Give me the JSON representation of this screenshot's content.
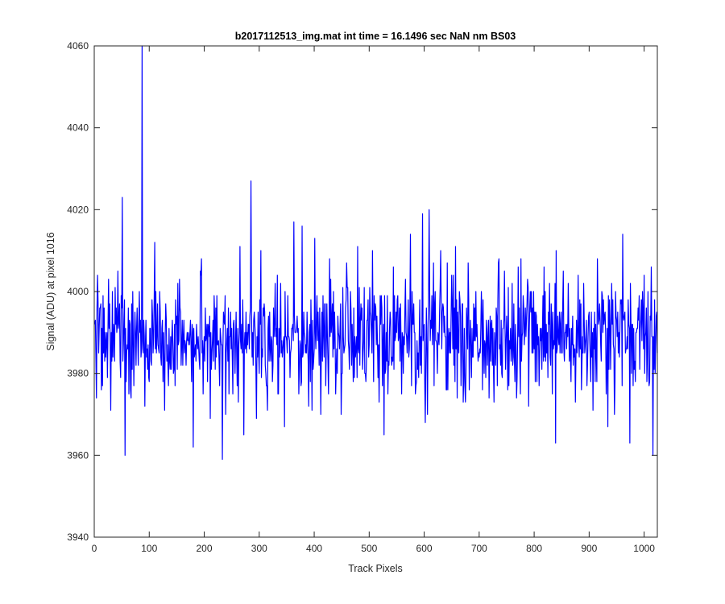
{
  "window": {
    "background": "#ffffff"
  },
  "chart_data": {
    "type": "line",
    "title": "b2017112513_img.mat int time = 16.1496 sec  NaN nm BS03",
    "xlabel": "Track Pixels",
    "ylabel": "Signal (ADU) at pixel 1016",
    "xlim": [
      0,
      1024
    ],
    "ylim": [
      3940,
      4060
    ],
    "xticks": [
      0,
      100,
      200,
      300,
      400,
      500,
      600,
      700,
      800,
      900,
      1000
    ],
    "yticks": [
      3940,
      3960,
      3980,
      4000,
      4020,
      4040,
      4060
    ],
    "grid": false,
    "box": true,
    "series": [
      {
        "color": "#0000ff",
        "x_start": 1,
        "x_step": 1,
        "noise": {
          "mean": 3989,
          "spread": 7,
          "min": 3962,
          "max": 4010,
          "seed": 20171125
        },
        "spikes": [
          {
            "x": 1,
            "y": 3992
          },
          {
            "x": 4,
            "y": 3974
          },
          {
            "x": 6,
            "y": 4004
          },
          {
            "x": 10,
            "y": 3996
          },
          {
            "x": 13,
            "y": 3976
          },
          {
            "x": 26,
            "y": 4003
          },
          {
            "x": 30,
            "y": 3971
          },
          {
            "x": 38,
            "y": 4001
          },
          {
            "x": 43,
            "y": 4005
          },
          {
            "x": 47,
            "y": 3983
          },
          {
            "x": 51,
            "y": 4023
          },
          {
            "x": 56,
            "y": 3960
          },
          {
            "x": 63,
            "y": 3975
          },
          {
            "x": 70,
            "y": 4000
          },
          {
            "x": 84,
            "y": 3993
          },
          {
            "x": 87,
            "y": 4060
          },
          {
            "x": 92,
            "y": 3972
          },
          {
            "x": 100,
            "y": 3978
          },
          {
            "x": 110,
            "y": 4012
          },
          {
            "x": 128,
            "y": 3971
          },
          {
            "x": 152,
            "y": 4002
          },
          {
            "x": 165,
            "y": 3988
          },
          {
            "x": 180,
            "y": 3962
          },
          {
            "x": 195,
            "y": 4008
          },
          {
            "x": 211,
            "y": 3969
          },
          {
            "x": 223,
            "y": 3999
          },
          {
            "x": 233,
            "y": 3959
          },
          {
            "x": 252,
            "y": 3975
          },
          {
            "x": 265,
            "y": 4011
          },
          {
            "x": 272,
            "y": 3965
          },
          {
            "x": 280,
            "y": 3992
          },
          {
            "x": 285,
            "y": 4027
          },
          {
            "x": 295,
            "y": 3969
          },
          {
            "x": 303,
            "y": 4010
          },
          {
            "x": 315,
            "y": 3971
          },
          {
            "x": 333,
            "y": 4004
          },
          {
            "x": 346,
            "y": 3967
          },
          {
            "x": 363,
            "y": 4017
          },
          {
            "x": 378,
            "y": 4016
          },
          {
            "x": 390,
            "y": 3972
          },
          {
            "x": 401,
            "y": 4013
          },
          {
            "x": 412,
            "y": 3970
          },
          {
            "x": 428,
            "y": 4008
          },
          {
            "x": 449,
            "y": 3970
          },
          {
            "x": 459,
            "y": 4007
          },
          {
            "x": 471,
            "y": 3978
          },
          {
            "x": 479,
            "y": 4011
          },
          {
            "x": 489,
            "y": 3985
          },
          {
            "x": 506,
            "y": 4010
          },
          {
            "x": 518,
            "y": 3973
          },
          {
            "x": 527,
            "y": 3965
          },
          {
            "x": 544,
            "y": 4006
          },
          {
            "x": 559,
            "y": 3975
          },
          {
            "x": 575,
            "y": 4014
          },
          {
            "x": 586,
            "y": 3978
          },
          {
            "x": 597,
            "y": 4019
          },
          {
            "x": 602,
            "y": 3968
          },
          {
            "x": 609,
            "y": 4020
          },
          {
            "x": 618,
            "y": 3977
          },
          {
            "x": 625,
            "y": 3990
          },
          {
            "x": 641,
            "y": 3976
          },
          {
            "x": 657,
            "y": 4011
          },
          {
            "x": 675,
            "y": 3973
          },
          {
            "x": 701,
            "y": 3986
          },
          {
            "x": 718,
            "y": 3974
          },
          {
            "x": 735,
            "y": 4007
          },
          {
            "x": 754,
            "y": 3977
          },
          {
            "x": 776,
            "y": 4008
          },
          {
            "x": 790,
            "y": 3972
          },
          {
            "x": 818,
            "y": 4006
          },
          {
            "x": 839,
            "y": 3963
          },
          {
            "x": 853,
            "y": 4005
          },
          {
            "x": 875,
            "y": 3973
          },
          {
            "x": 907,
            "y": 3971
          },
          {
            "x": 915,
            "y": 4008
          },
          {
            "x": 934,
            "y": 3967
          },
          {
            "x": 959,
            "y": 3998
          },
          {
            "x": 961,
            "y": 4014
          },
          {
            "x": 974,
            "y": 3963
          },
          {
            "x": 1000,
            "y": 4004
          },
          {
            "x": 1010,
            "y": 3978
          },
          {
            "x": 1016,
            "y": 3960
          },
          {
            "x": 1018,
            "y": 3981
          },
          {
            "x": 1022,
            "y": 3994
          },
          {
            "x": 1024,
            "y": 3985
          }
        ]
      }
    ]
  }
}
